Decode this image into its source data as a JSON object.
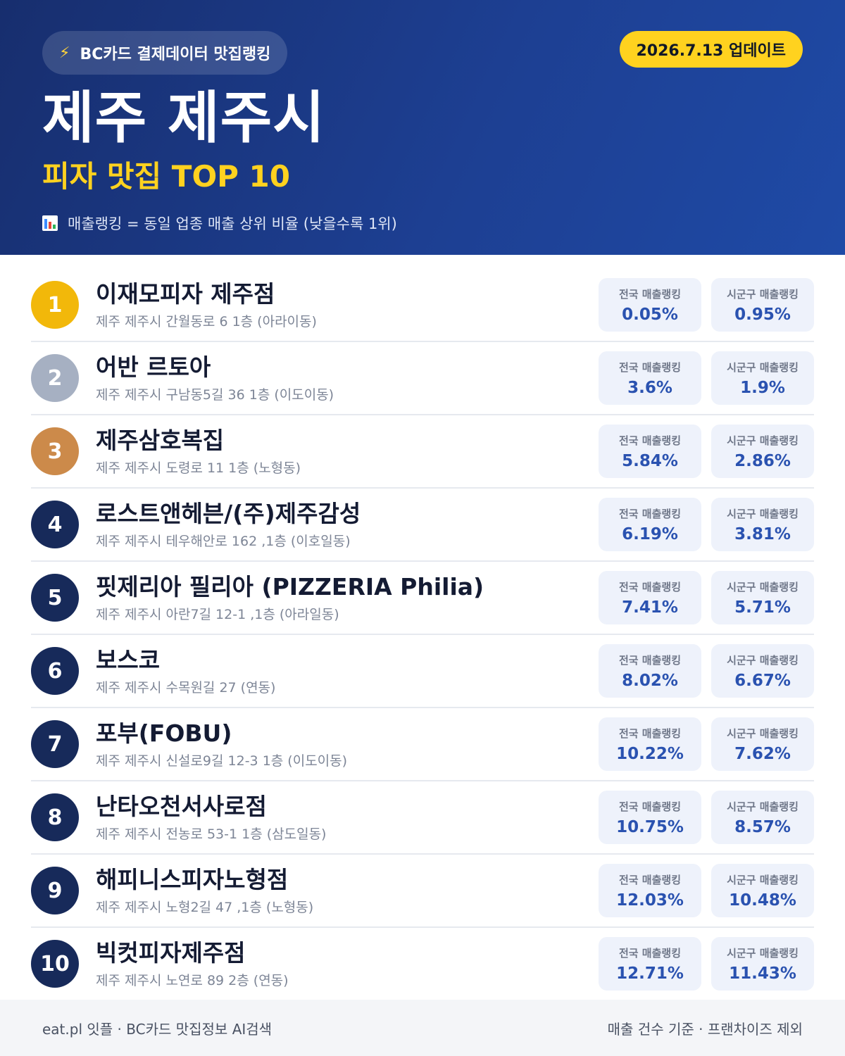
{
  "header": {
    "source_label": "BC카드 결제데이터 맛집랭킹",
    "update_label": "2026.7.13 업데이트",
    "city": "제주 제주시",
    "category": "피자 맛집 TOP 10",
    "legend": "매출랭킹 = 동일 업종 매출 상위 비율 (낮을수록 1위)",
    "icons": {
      "source": "lightning-bolt-icon",
      "legend": "bar-chart-icon"
    },
    "colors": {
      "accent": "#ffd21f",
      "background": "#1d3f92"
    }
  },
  "labels": {
    "national": "전국 매출랭킹",
    "district": "시군구 매출랭킹"
  },
  "restaurants": [
    {
      "rank": "1",
      "name": "이재모피자 제주점",
      "address": "제주 제주시 간월동로 6 1층 (아라이동)",
      "national": "0.05%",
      "district": "0.95%"
    },
    {
      "rank": "2",
      "name": "어반 르토아",
      "address": "제주 제주시 구남동5길 36 1층 (이도이동)",
      "national": "3.6%",
      "district": "1.9%"
    },
    {
      "rank": "3",
      "name": "제주삼호복집",
      "address": "제주 제주시 도령로 11 1층 (노형동)",
      "national": "5.84%",
      "district": "2.86%"
    },
    {
      "rank": "4",
      "name": "로스트앤헤븐/(주)제주감성",
      "address": "제주 제주시 테우해안로 162 ,1층 (이호일동)",
      "national": "6.19%",
      "district": "3.81%"
    },
    {
      "rank": "5",
      "name": "핏제리아 필리아 (PIZZERIA Philia)",
      "address": "제주 제주시 아란7길 12-1 ,1층 (아라일동)",
      "national": "7.41%",
      "district": "5.71%"
    },
    {
      "rank": "6",
      "name": "보스코",
      "address": "제주 제주시 수목원길 27 (연동)",
      "national": "8.02%",
      "district": "6.67%"
    },
    {
      "rank": "7",
      "name": "포부(FOBU)",
      "address": "제주 제주시 신설로9길 12-3 1층 (이도이동)",
      "national": "10.22%",
      "district": "7.62%"
    },
    {
      "rank": "8",
      "name": "난타오천서사로점",
      "address": "제주 제주시 전농로 53-1 1층 (삼도일동)",
      "national": "10.75%",
      "district": "8.57%"
    },
    {
      "rank": "9",
      "name": "해피니스피자노형점",
      "address": "제주 제주시 노형2길 47 ,1층 (노형동)",
      "national": "12.03%",
      "district": "10.48%"
    },
    {
      "rank": "10",
      "name": "빅컷피자제주점",
      "address": "제주 제주시 노연로 89 2층 (연동)",
      "national": "12.71%",
      "district": "11.43%"
    }
  ],
  "footer": {
    "left": "eat.pl 잇플 · BC카드 맛집정보 AI검색",
    "right": "매출 건수 기준 · 프랜차이즈 제외"
  }
}
